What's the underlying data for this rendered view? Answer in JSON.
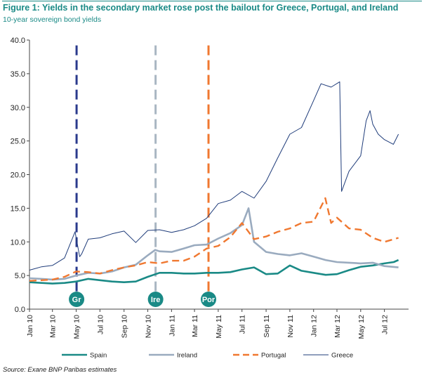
{
  "header": {
    "title": "Figure 1: Yields in the secondary market rose post the bailout for Greece, Portugal, and Ireland",
    "subtitle": "10-year sovereign bond yields"
  },
  "footer": {
    "source": "Source: Exane BNP Paribas estimates"
  },
  "chart_data": {
    "type": "line",
    "title": "Figure 1: Yields in the secondary market rose post the bailout for Greece, Portugal, and Ireland",
    "subtitle": "10-year sovereign bond yields",
    "xlabel": "",
    "ylabel": "",
    "x_domain": [
      "2010-01",
      "2012-09"
    ],
    "ylim": [
      0,
      40
    ],
    "y_ticks": [
      0,
      5,
      10,
      15,
      20,
      25,
      30,
      35,
      40
    ],
    "y_tick_labels": [
      "0.0",
      "5.0",
      "10.0",
      "15.0",
      "20.0",
      "25.0",
      "30.0",
      "35.0",
      "40.0"
    ],
    "x_ticks": [
      "2010-01",
      "2010-03",
      "2010-05",
      "2010-07",
      "2010-09",
      "2010-11",
      "2011-01",
      "2011-03",
      "2011-05",
      "2011-07",
      "2011-09",
      "2011-11",
      "2012-01",
      "2012-03",
      "2012-05",
      "2012-07"
    ],
    "x_tick_labels": [
      "Jan 10",
      "Mar 10",
      "May 10",
      "Jul 10",
      "Sep 10",
      "Nov 10",
      "Jan 11",
      "Mar 11",
      "May 11",
      "Jul 11",
      "Sep 11",
      "Nov 11",
      "Jan 12",
      "Mar 12",
      "May 12",
      "Jul 12"
    ],
    "grid": false,
    "legend_position": "bottom",
    "series": [
      {
        "name": "Spain",
        "color": "#1a8a86",
        "style": "solid",
        "x": [
          "2010-01-01",
          "2010-02-01",
          "2010-03-01",
          "2010-04-01",
          "2010-05-01",
          "2010-06-01",
          "2010-07-01",
          "2010-08-01",
          "2010-09-01",
          "2010-10-01",
          "2010-11-01",
          "2010-12-01",
          "2011-01-01",
          "2011-02-01",
          "2011-03-01",
          "2011-04-01",
          "2011-05-01",
          "2011-06-01",
          "2011-07-01",
          "2011-08-01",
          "2011-09-01",
          "2011-10-01",
          "2011-11-01",
          "2011-12-01",
          "2012-01-01",
          "2012-02-01",
          "2012-03-01",
          "2012-04-01",
          "2012-05-01",
          "2012-06-01",
          "2012-07-01",
          "2012-07-25",
          "2012-08-06"
        ],
        "y": [
          4.0,
          3.9,
          3.8,
          3.9,
          4.1,
          4.5,
          4.3,
          4.1,
          4.0,
          4.1,
          4.8,
          5.4,
          5.4,
          5.3,
          5.3,
          5.4,
          5.4,
          5.5,
          5.9,
          6.2,
          5.2,
          5.3,
          6.5,
          5.7,
          5.4,
          5.1,
          5.2,
          5.8,
          6.3,
          6.5,
          6.8,
          7.0,
          7.3
        ]
      },
      {
        "name": "Ireland",
        "color": "#9aabbf",
        "style": "solid",
        "x": [
          "2010-01-01",
          "2010-02-01",
          "2010-03-01",
          "2010-04-01",
          "2010-05-01",
          "2010-06-01",
          "2010-07-01",
          "2010-08-01",
          "2010-09-01",
          "2010-10-01",
          "2010-11-01",
          "2010-11-20",
          "2010-12-01",
          "2011-01-01",
          "2011-02-01",
          "2011-03-01",
          "2011-04-01",
          "2011-05-01",
          "2011-06-01",
          "2011-07-01",
          "2011-07-18",
          "2011-08-01",
          "2011-09-01",
          "2011-10-01",
          "2011-11-01",
          "2011-12-01",
          "2012-01-01",
          "2012-02-01",
          "2012-03-01",
          "2012-04-01",
          "2012-05-01",
          "2012-06-01",
          "2012-07-01",
          "2012-08-06"
        ],
        "y": [
          4.6,
          4.5,
          4.4,
          4.5,
          5.0,
          5.4,
          5.3,
          5.6,
          6.2,
          6.6,
          8.0,
          8.8,
          8.6,
          8.5,
          9.0,
          9.5,
          9.6,
          10.5,
          11.3,
          12.5,
          15.0,
          10.0,
          8.5,
          8.2,
          8.0,
          8.3,
          7.8,
          7.3,
          7.0,
          6.9,
          6.8,
          6.9,
          6.4,
          6.2
        ]
      },
      {
        "name": "Portugal",
        "color": "#f07830",
        "style": "dashed",
        "x": [
          "2010-01-01",
          "2010-02-01",
          "2010-03-01",
          "2010-04-01",
          "2010-05-01",
          "2010-06-01",
          "2010-07-01",
          "2010-08-01",
          "2010-09-01",
          "2010-10-01",
          "2010-11-01",
          "2010-12-01",
          "2011-01-01",
          "2011-02-01",
          "2011-03-01",
          "2011-04-01",
          "2011-05-01",
          "2011-06-01",
          "2011-07-01",
          "2011-08-01",
          "2011-09-01",
          "2011-10-01",
          "2011-11-01",
          "2011-12-01",
          "2012-01-01",
          "2012-01-31",
          "2012-02-15",
          "2012-03-01",
          "2012-04-01",
          "2012-05-01",
          "2012-06-01",
          "2012-07-01",
          "2012-08-06"
        ],
        "y": [
          4.2,
          4.3,
          4.4,
          4.8,
          5.6,
          5.5,
          5.3,
          5.8,
          6.2,
          6.5,
          7.0,
          6.8,
          7.2,
          7.2,
          7.8,
          9.0,
          9.4,
          10.7,
          12.8,
          10.4,
          10.8,
          11.5,
          12.0,
          12.8,
          13.0,
          16.5,
          12.8,
          13.6,
          12.0,
          11.8,
          10.6,
          10.0,
          10.6
        ]
      },
      {
        "name": "Greece",
        "color": "#1f3c7a",
        "style": "solid",
        "x": [
          "2010-01-01",
          "2010-02-01",
          "2010-03-01",
          "2010-04-01",
          "2010-04-28",
          "2010-05-10",
          "2010-05-15",
          "2010-06-01",
          "2010-07-01",
          "2010-08-01",
          "2010-09-01",
          "2010-10-01",
          "2010-11-01",
          "2010-12-01",
          "2011-01-01",
          "2011-02-01",
          "2011-03-01",
          "2011-04-01",
          "2011-05-01",
          "2011-06-01",
          "2011-07-01",
          "2011-08-01",
          "2011-09-01",
          "2011-10-01",
          "2011-11-01",
          "2011-12-01",
          "2012-01-01",
          "2012-01-20",
          "2012-02-15",
          "2012-03-08",
          "2012-03-13",
          "2012-04-01",
          "2012-05-01",
          "2012-05-15",
          "2012-05-25",
          "2012-06-01",
          "2012-06-15",
          "2012-07-01",
          "2012-07-24",
          "2012-08-06"
        ],
        "y": [
          5.8,
          6.3,
          6.5,
          7.6,
          11.5,
          7.8,
          8.2,
          10.4,
          10.6,
          11.2,
          11.6,
          9.9,
          11.7,
          11.8,
          11.4,
          11.8,
          12.4,
          13.5,
          15.7,
          16.2,
          17.5,
          16.5,
          19.0,
          22.5,
          26.0,
          27.0,
          31.0,
          33.5,
          33.0,
          33.8,
          17.5,
          20.5,
          22.8,
          28.0,
          29.5,
          27.5,
          26.0,
          25.2,
          24.5,
          26.0
        ]
      }
    ],
    "events": [
      {
        "label": "Gr",
        "x": "2010-05-02",
        "color": "#2a3a8c"
      },
      {
        "label": "Ire",
        "x": "2010-11-21",
        "color": "#a9b6c2"
      },
      {
        "label": "Por",
        "x": "2011-04-06",
        "color": "#f07830"
      }
    ]
  }
}
